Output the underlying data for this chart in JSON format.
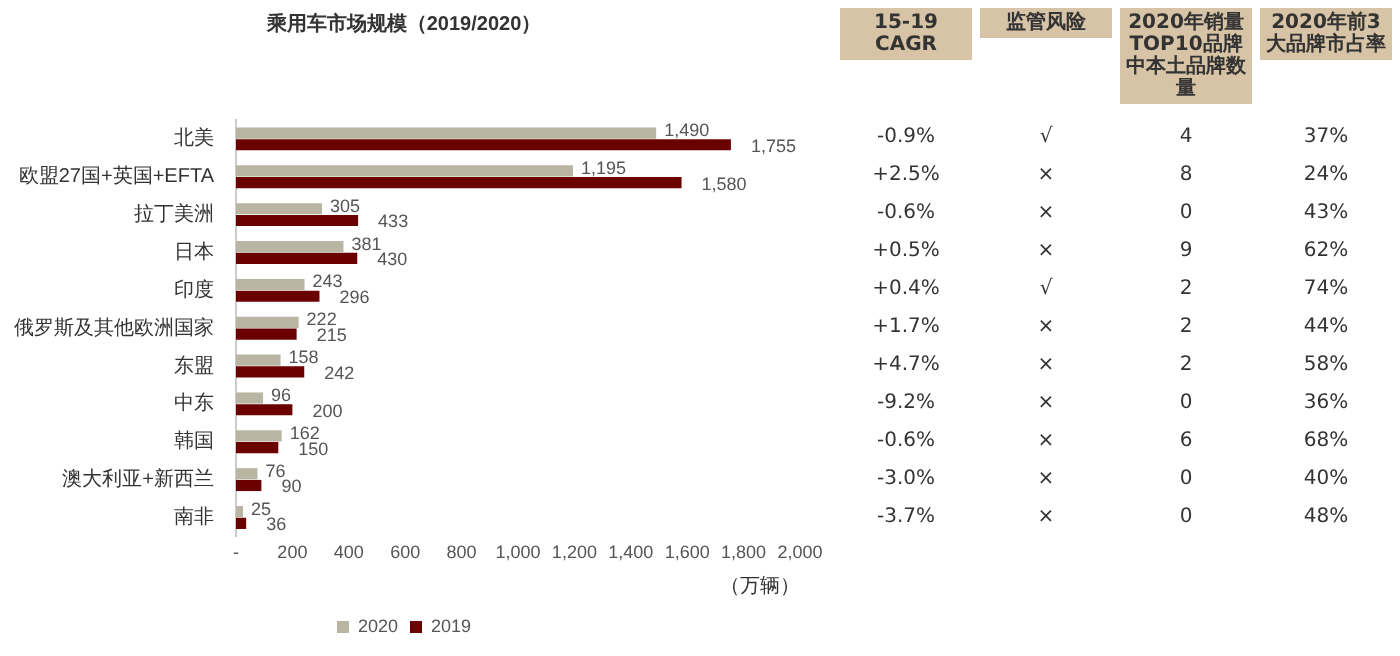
{
  "chart_data": [
    {
      "type": "bar",
      "orientation": "horizontal",
      "title": "乘用车市场规模（2019/2020）",
      "xlabel": "（万辆）",
      "categories": [
        "北美",
        "欧盟27国+英国+EFTA",
        "拉丁美洲",
        "日本",
        "印度",
        "俄罗斯及其他欧洲国家",
        "东盟",
        "中东",
        "韩国",
        "澳大利亚+新西兰",
        "南非"
      ],
      "series": [
        {
          "name": "2020",
          "color": "#b8b5a3",
          "values": [
            1490,
            1195,
            305,
            381,
            243,
            222,
            158,
            96,
            162,
            76,
            25
          ],
          "value_labels": [
            "1,490",
            "1,195",
            "305",
            "381",
            "243",
            "222",
            "158",
            "96",
            "162",
            "76",
            "25"
          ]
        },
        {
          "name": "2019",
          "color": "#6b0000",
          "values": [
            1755,
            1580,
            433,
            430,
            296,
            215,
            242,
            200,
            150,
            90,
            36
          ],
          "value_labels": [
            "1,755",
            "1,580",
            "433",
            "430",
            "296",
            "215",
            "242",
            "200",
            "150",
            "90",
            "36"
          ]
        }
      ],
      "xlim": [
        0,
        2000
      ],
      "xticks": [
        {
          "value": 0,
          "label": "-"
        },
        {
          "value": 200,
          "label": "200"
        },
        {
          "value": 400,
          "label": "400"
        },
        {
          "value": 600,
          "label": "600"
        },
        {
          "value": 800,
          "label": "800"
        },
        {
          "value": 1000,
          "label": "1,000"
        },
        {
          "value": 1200,
          "label": "1,200"
        },
        {
          "value": 1400,
          "label": "1,400"
        },
        {
          "value": 1600,
          "label": "1,600"
        },
        {
          "value": 1800,
          "label": "1,800"
        },
        {
          "value": 2000,
          "label": "2,000"
        }
      ],
      "grid": false,
      "legend": "bottom"
    },
    {
      "type": "other",
      "title": "15-19 CAGR",
      "annotations": [
        "-0.9%",
        "+2.5%",
        "-0.6%",
        "+0.5%",
        "+0.4%",
        "+1.7%",
        "+4.7%",
        "-9.2%",
        "-0.6%",
        "-3.0%",
        "-3.7%"
      ]
    },
    {
      "type": "other",
      "title": "监管风险",
      "annotations": [
        "√",
        "×",
        "×",
        "×",
        "√",
        "×",
        "×",
        "×",
        "×",
        "×",
        "×"
      ]
    },
    {
      "type": "other",
      "title": "2020年销量TOP10品牌中本土品牌数量",
      "annotations": [
        "4",
        "8",
        "0",
        "9",
        "2",
        "2",
        "2",
        "0",
        "6",
        "0",
        "0"
      ]
    },
    {
      "type": "other",
      "title": "2020年前3大品牌市占率",
      "annotations": [
        "37%",
        "24%",
        "43%",
        "62%",
        "74%",
        "44%",
        "58%",
        "36%",
        "68%",
        "40%",
        "48%"
      ]
    }
  ]
}
